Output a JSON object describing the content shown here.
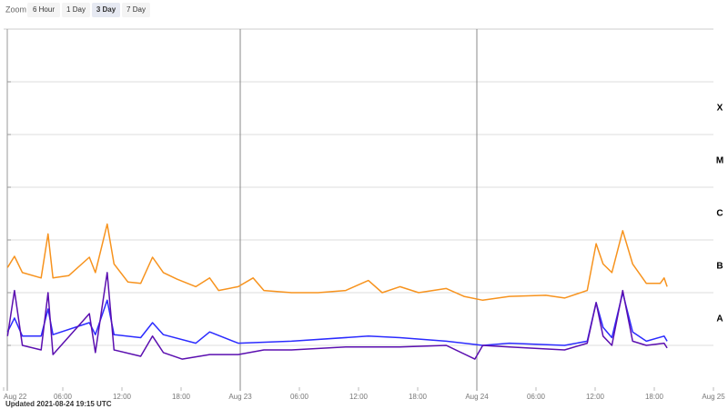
{
  "toolbar": {
    "label": "Zoom",
    "buttons": [
      "6 Hour",
      "1 Day",
      "3 Day",
      "7 Day"
    ],
    "selected": 2
  },
  "footer": "Updated 2021-08-24 19:15 UTC",
  "chart_data": {
    "type": "line",
    "log_y": true,
    "grid": true,
    "xlim": [
      0,
      72
    ],
    "xticks": [
      {
        "value": 0,
        "label": "Aug 22"
      },
      {
        "value": 6,
        "label": "06:00"
      },
      {
        "value": 12,
        "label": "12:00"
      },
      {
        "value": 18,
        "label": "18:00"
      },
      {
        "value": 24,
        "label": "Aug 23"
      },
      {
        "value": 30,
        "label": "06:00"
      },
      {
        "value": 36,
        "label": "12:00"
      },
      {
        "value": 42,
        "label": "18:00"
      },
      {
        "value": 48,
        "label": "Aug 24"
      },
      {
        "value": 54,
        "label": "06:00"
      },
      {
        "value": 60,
        "label": "12:00"
      },
      {
        "value": 66,
        "label": "18:00"
      },
      {
        "value": 72,
        "label": "Aug 25"
      }
    ],
    "ylim": [
      1e-09,
      0.01
    ],
    "yticks": [
      1e-08,
      1e-07,
      1e-06,
      1e-05,
      0.0001,
      0.001
    ],
    "flare_classes": [
      {
        "label": "X",
        "value": 0.0001
      },
      {
        "label": "M",
        "value": 1e-05
      },
      {
        "label": "C",
        "value": 1e-06
      },
      {
        "label": "B",
        "value": 1e-07
      },
      {
        "label": "A",
        "value": 1e-08
      }
    ],
    "series": [
      {
        "color": "#f7931e",
        "x": [
          0.4,
          1.1,
          1.9,
          3.8,
          4.5,
          5.0,
          6.6,
          8.7,
          9.3,
          10.5,
          11.2,
          12.6,
          13.9,
          15.1,
          16.2,
          17.6,
          19.5,
          20.9,
          21.8,
          23.8,
          25.3,
          26.4,
          29.2,
          31.9,
          34.7,
          37.0,
          38.4,
          40.2,
          42.1,
          44.9,
          46.7,
          48.6,
          51.3,
          55.0,
          56.9,
          59.2,
          60.1,
          60.8,
          61.7,
          62.8,
          63.8,
          65.2,
          66.6,
          67.0,
          67.3
        ],
        "values": [
          3e-07,
          4.9e-07,
          2.4e-07,
          1.9e-07,
          1.3e-06,
          1.9e-07,
          2.1e-07,
          4.7e-07,
          2.4e-07,
          2e-06,
          3.5e-07,
          1.6e-07,
          1.5e-07,
          4.7e-07,
          2.4e-07,
          1.8e-07,
          1.3e-07,
          1.9e-07,
          1.1e-07,
          1.3e-07,
          1.9e-07,
          1.1e-07,
          1e-07,
          1e-07,
          1.1e-07,
          1.7e-07,
          1e-07,
          1.3e-07,
          1e-07,
          1.2e-07,
          8.5e-08,
          7.2e-08,
          8.5e-08,
          8.9e-08,
          7.9e-08,
          1.1e-07,
          8.5e-07,
          3.5e-07,
          2.4e-07,
          1.5e-06,
          3.5e-07,
          1.5e-07,
          1.5e-07,
          1.9e-07,
          1.3e-07
        ]
      },
      {
        "color": "#2b2bff",
        "x": [
          0.4,
          1.1,
          1.9,
          3.8,
          4.5,
          5.0,
          8.7,
          9.3,
          10.5,
          11.2,
          13.9,
          15.1,
          16.2,
          19.5,
          20.9,
          23.8,
          29.2,
          37.0,
          40.2,
          44.9,
          48.6,
          51.3,
          56.9,
          59.2,
          60.1,
          60.8,
          61.7,
          62.8,
          63.8,
          65.2,
          67.0,
          67.3
        ],
        "values": [
          1.8e-08,
          3.3e-08,
          1.5e-08,
          1.5e-08,
          4.9e-08,
          1.6e-08,
          2.7e-08,
          1.6e-08,
          7.2e-08,
          1.6e-08,
          1.4e-08,
          2.7e-08,
          1.6e-08,
          1.1e-08,
          1.8e-08,
          1.1e-08,
          1.2e-08,
          1.5e-08,
          1.4e-08,
          1.2e-08,
          1e-08,
          1.1e-08,
          1e-08,
          1.2e-08,
          6.5e-08,
          2.2e-08,
          1.4e-08,
          1e-07,
          1.8e-08,
          1.2e-08,
          1.5e-08,
          1.2e-08
        ]
      },
      {
        "color": "#5b0fb0",
        "x": [
          0.4,
          1.1,
          1.9,
          3.8,
          4.5,
          5.0,
          8.7,
          9.3,
          10.5,
          11.2,
          13.9,
          15.1,
          16.2,
          18.1,
          20.9,
          23.8,
          26.4,
          29.2,
          34.7,
          40.2,
          44.9,
          47.8,
          48.6,
          51.3,
          56.9,
          59.2,
          60.1,
          60.8,
          61.7,
          62.8,
          63.8,
          65.2,
          67.0,
          67.3
        ],
        "values": [
          1.5e-08,
          1.1e-07,
          1e-08,
          8.2e-09,
          1e-07,
          6.7e-09,
          4e-08,
          7.3e-09,
          2.4e-07,
          8.2e-09,
          6.2e-09,
          1.5e-08,
          7.3e-09,
          5.5e-09,
          6.7e-09,
          6.7e-09,
          8.2e-09,
          8.2e-09,
          9.3e-09,
          9.3e-09,
          1e-08,
          5.5e-09,
          1e-08,
          9.3e-09,
          8.2e-09,
          1.1e-08,
          6.5e-08,
          1.5e-08,
          1e-08,
          1.1e-07,
          1.2e-08,
          1e-08,
          1.1e-08,
          8.9e-09
        ]
      }
    ]
  }
}
